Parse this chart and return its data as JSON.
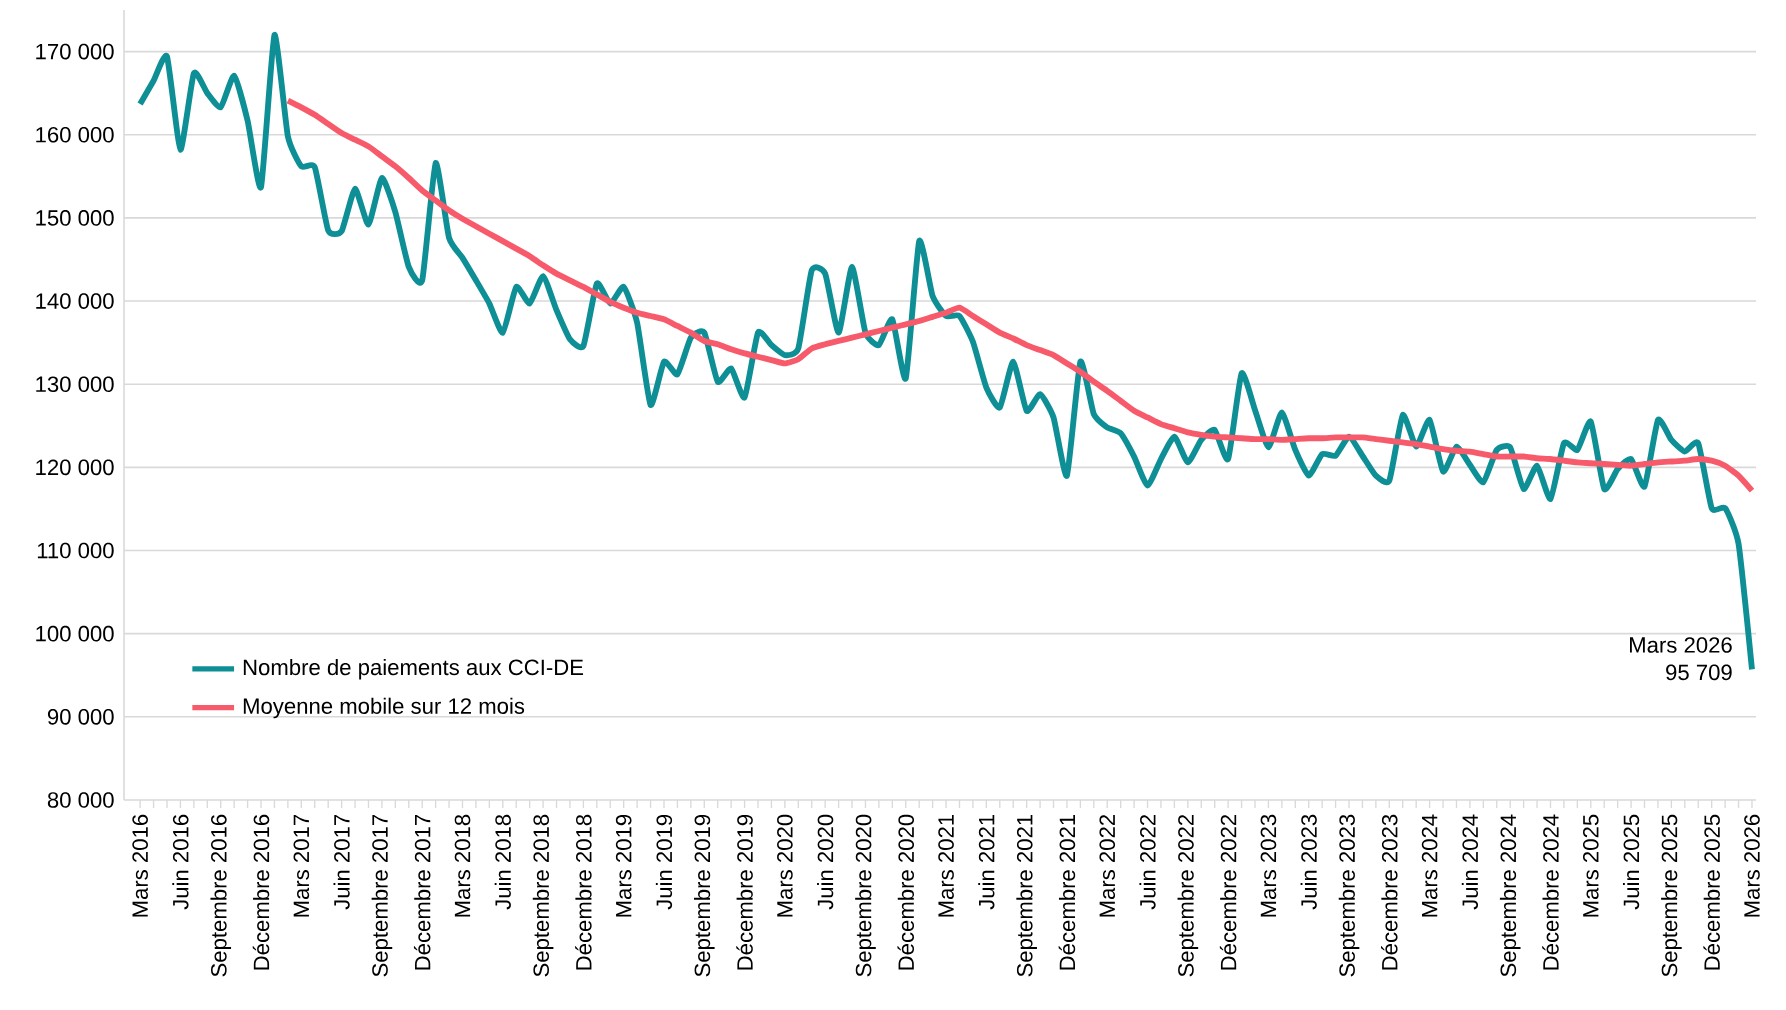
{
  "chart_data": {
    "type": "line",
    "categories": [
      "Mars 2016",
      null,
      null,
      "Juin 2016",
      null,
      null,
      "Septembre 2016",
      null,
      null,
      "Décembre 2016",
      null,
      null,
      "Mars 2017",
      null,
      null,
      "Juin 2017",
      null,
      null,
      "Septembre 2017",
      null,
      null,
      "Décembre 2017",
      null,
      null,
      "Mars 2018",
      null,
      null,
      "Juin 2018",
      null,
      null,
      "Septembre 2018",
      null,
      null,
      "Décembre 2018",
      null,
      null,
      "Mars 2019",
      null,
      null,
      "Juin 2019",
      null,
      null,
      "Septembre 2019",
      null,
      null,
      "Décembre 2019",
      null,
      null,
      "Mars 2020",
      null,
      null,
      "Juin 2020",
      null,
      null,
      "Septembre 2020",
      null,
      null,
      "Décembre 2020",
      null,
      null,
      "Mars 2021",
      null,
      null,
      "Juin 2021",
      null,
      null,
      "Septembre 2021",
      null,
      null,
      "Décembre 2021",
      null,
      null,
      "Mars 2022",
      null,
      null,
      "Juin 2022",
      null,
      null,
      "Septembre 2022",
      null,
      null,
      "Décembre 2022",
      null,
      null,
      "Mars 2023",
      null,
      null,
      "Juin 2023",
      null,
      null,
      "Septembre 2023",
      null,
      null,
      "Décembre 2023",
      null,
      null,
      "Mars 2024",
      null,
      null,
      "Juin 2024",
      null,
      null,
      "Septembre 2024",
      null,
      null,
      "Décembre 2024",
      null,
      null,
      "Mars 2025",
      null,
      null,
      "Juin 2025",
      null,
      null,
      "Septembre 2025",
      null,
      null,
      "Décembre 2025",
      null,
      null,
      "Mars 2026"
    ],
    "series": [
      {
        "name": "Nombre de paiements aux CCI-DE",
        "color": "#0e8f96",
        "values": [
          163700,
          166500,
          169400,
          158200,
          167400,
          165000,
          163300,
          167100,
          161700,
          153700,
          172000,
          159800,
          156200,
          156100,
          148500,
          148400,
          153500,
          149200,
          154800,
          150700,
          144100,
          142500,
          156600,
          147600,
          145200,
          142500,
          139700,
          136200,
          141700,
          139700,
          143000,
          138900,
          135400,
          134600,
          142100,
          139700,
          141700,
          137400,
          127500,
          132700,
          131200,
          135600,
          136200,
          130300,
          131900,
          128400,
          136200,
          134700,
          133500,
          134300,
          143700,
          143300,
          136200,
          144100,
          136200,
          134700,
          137800,
          130700,
          147200,
          140600,
          138200,
          138200,
          135100,
          129600,
          127200,
          132700,
          126800,
          128800,
          126000,
          119000,
          132700,
          126400,
          124800,
          124100,
          121300,
          117800,
          121000,
          123700,
          120600,
          123300,
          124500,
          121000,
          131300,
          126900,
          122400,
          126600,
          122100,
          119000,
          121600,
          121400,
          123700,
          121400,
          119000,
          118400,
          126300,
          122500,
          125700,
          119500,
          122500,
          120300,
          118200,
          122100,
          122400,
          117400,
          120200,
          116200,
          122900,
          122100,
          125500,
          117400,
          119800,
          121000,
          117700,
          125700,
          123300,
          121900,
          122900,
          115100,
          115100,
          110800,
          95709
        ]
      },
      {
        "name": "Moyenne mobile sur 12 mois",
        "color": "#f75b6b",
        "values": [
          null,
          null,
          null,
          null,
          null,
          null,
          null,
          null,
          null,
          null,
          null,
          164100,
          163300,
          162400,
          161300,
          160200,
          159400,
          158600,
          157400,
          156200,
          154800,
          153300,
          152100,
          150900,
          149900,
          149000,
          148100,
          147200,
          146300,
          145400,
          144300,
          143300,
          142500,
          141700,
          140800,
          139900,
          139200,
          138600,
          138200,
          137800,
          137000,
          136200,
          135200,
          134800,
          134200,
          133700,
          133300,
          132900,
          132500,
          133000,
          134300,
          134800,
          135200,
          135600,
          136000,
          136400,
          136800,
          137200,
          137600,
          138100,
          138600,
          139200,
          138200,
          137200,
          136200,
          135500,
          134700,
          134100,
          133500,
          132500,
          131500,
          130300,
          129200,
          128000,
          126800,
          126000,
          125200,
          124700,
          124200,
          123900,
          123700,
          123600,
          123500,
          123400,
          123400,
          123300,
          123400,
          123500,
          123500,
          123600,
          123600,
          123600,
          123400,
          123200,
          123000,
          122800,
          122500,
          122200,
          122000,
          121900,
          121600,
          121300,
          121300,
          121300,
          121100,
          121000,
          120800,
          120600,
          120500,
          120400,
          120300,
          120200,
          120400,
          120600,
          120700,
          120800,
          121000,
          120800,
          120200,
          119000,
          117200
        ]
      }
    ],
    "ylim": [
      80000,
      175000
    ],
    "yticks": [
      {
        "value": 80000,
        "label": "80 000"
      },
      {
        "value": 90000,
        "label": "90 000"
      },
      {
        "value": 100000,
        "label": "100 000"
      },
      {
        "value": 110000,
        "label": "110 000"
      },
      {
        "value": 120000,
        "label": "120 000"
      },
      {
        "value": 130000,
        "label": "130 000"
      },
      {
        "value": 140000,
        "label": "140 000"
      },
      {
        "value": 150000,
        "label": "150 000"
      },
      {
        "value": 160000,
        "label": "160 000"
      },
      {
        "value": 170000,
        "label": "170 000"
      }
    ],
    "grid": "y",
    "legend": "bottom left",
    "marker": "none",
    "line_style": "solid",
    "annotations": [
      {
        "text": "Mars 2026",
        "x": "Mars 2026",
        "y": 95709
      },
      {
        "text": "95 709",
        "x": "Mars 2026",
        "y": 95709
      }
    ]
  }
}
